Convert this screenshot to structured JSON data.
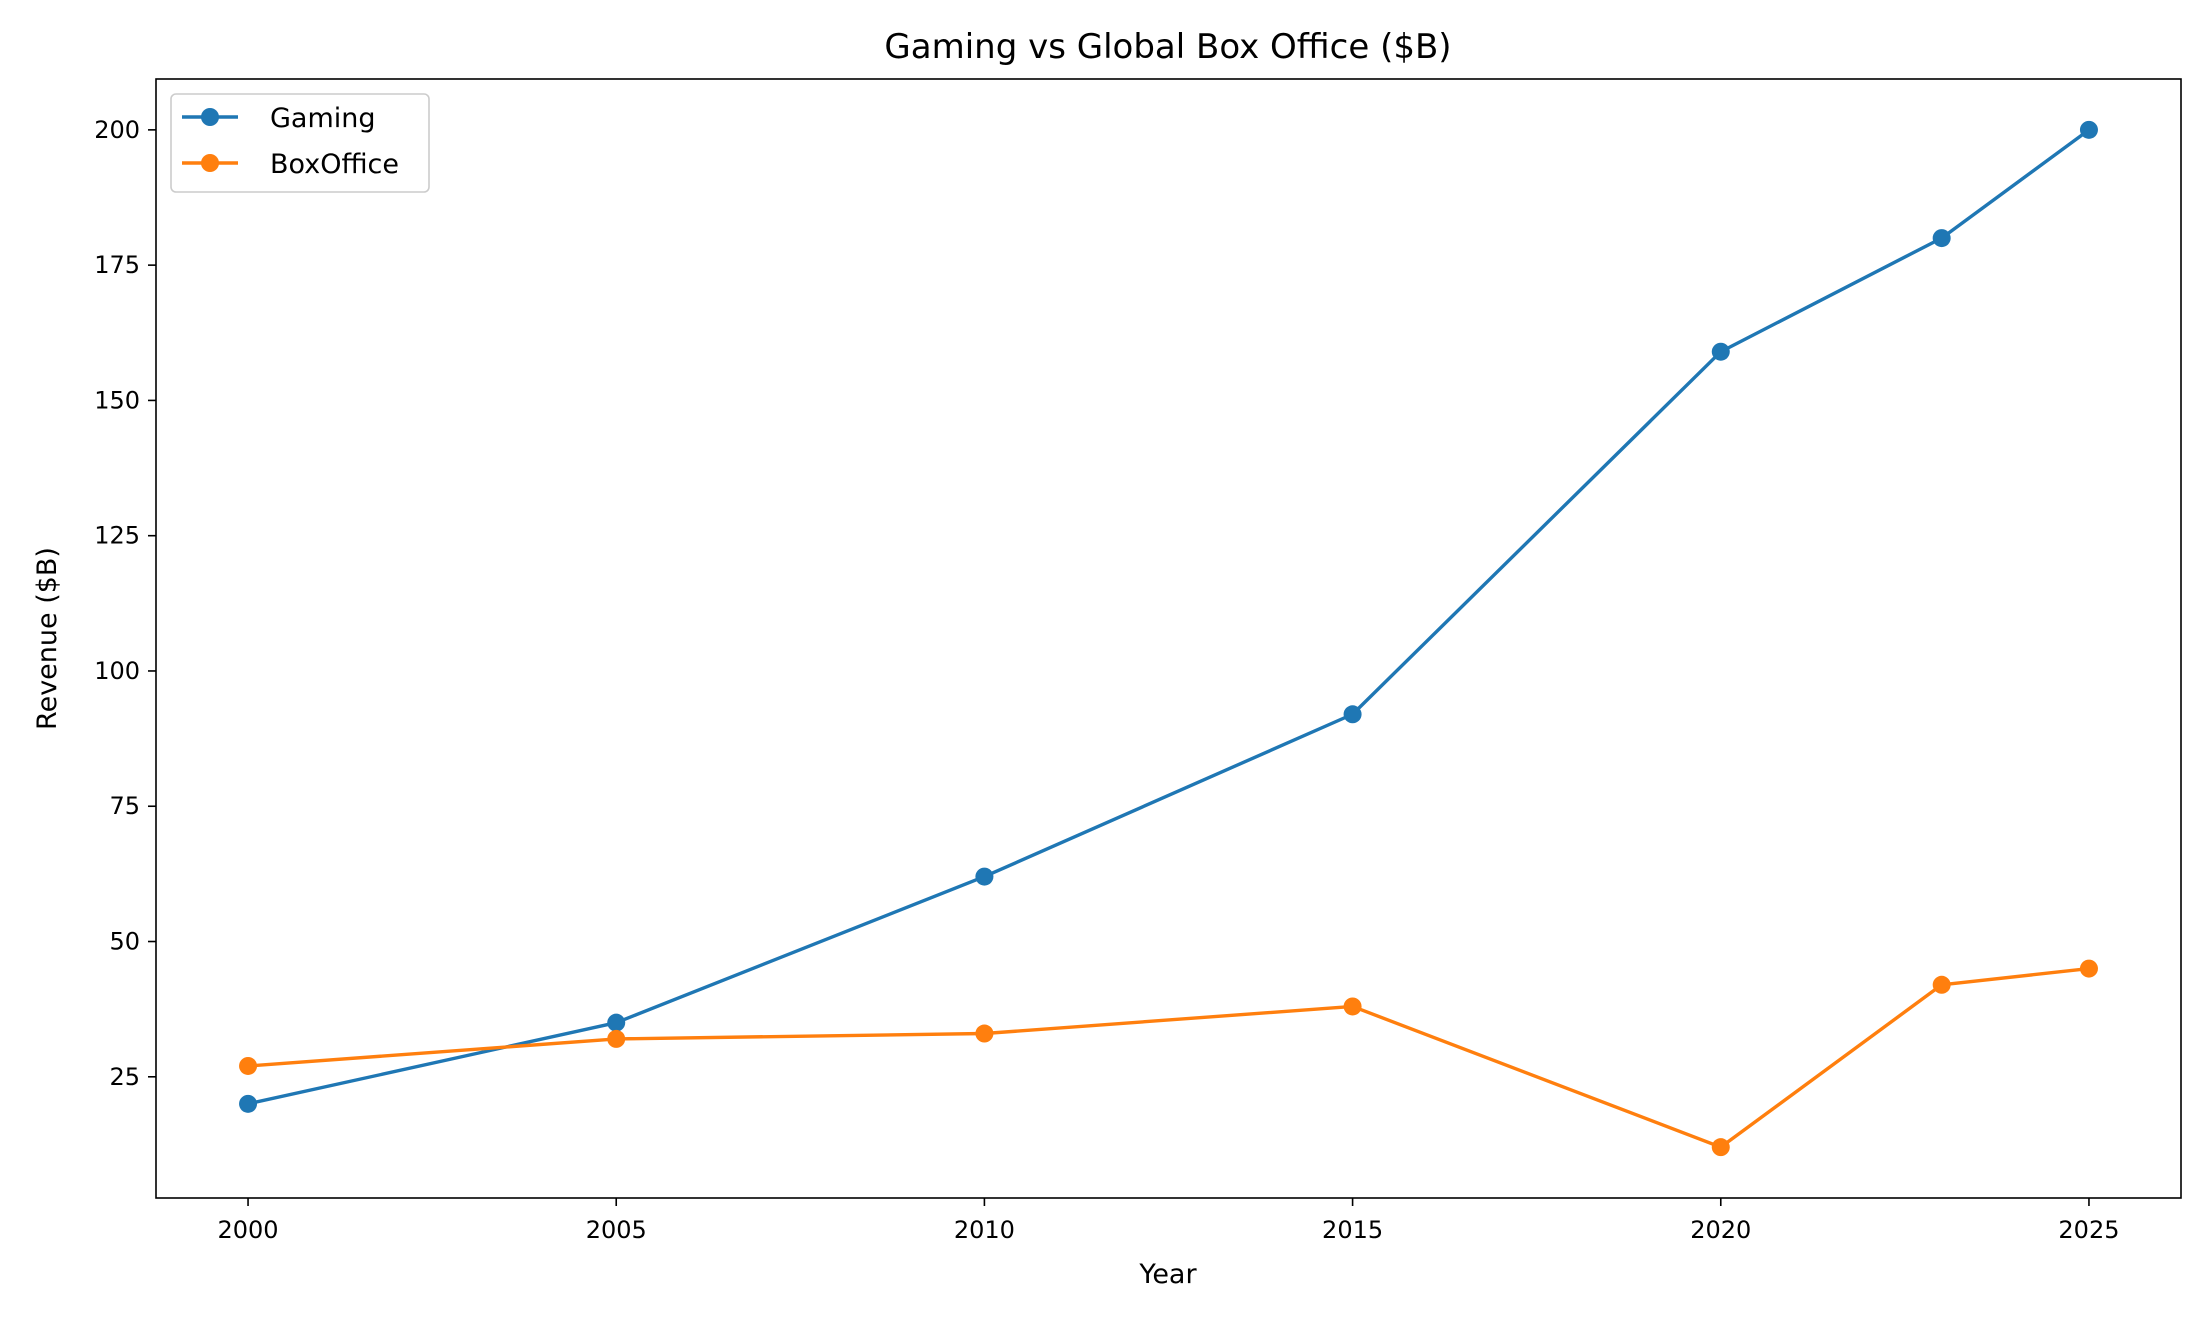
{
  "chart_data": {
    "type": "line",
    "title": "Gaming vs Global Box Office ($B)",
    "xlabel": "Year",
    "ylabel": "Revenue ($B)",
    "x": [
      2000,
      2005,
      2010,
      2015,
      2020,
      2023,
      2025
    ],
    "xlim": [
      1998.75,
      2026.25
    ],
    "ylim": [
      2.6,
      209.4
    ],
    "xticks": [
      "2000",
      "2005",
      "2010",
      "2015",
      "2020",
      "2025"
    ],
    "yticks": [
      "25",
      "50",
      "75",
      "100",
      "125",
      "150",
      "175",
      "200"
    ],
    "grid": false,
    "legend_position": "top-left",
    "series": [
      {
        "name": "Gaming",
        "color": "#1f77b4",
        "marker": "circle",
        "values": [
          20,
          35,
          62,
          92,
          159,
          180,
          200
        ]
      },
      {
        "name": "BoxOffice",
        "color": "#ff7f0e",
        "marker": "circle",
        "values": [
          27,
          32,
          33,
          38,
          12,
          42,
          45
        ]
      }
    ]
  }
}
